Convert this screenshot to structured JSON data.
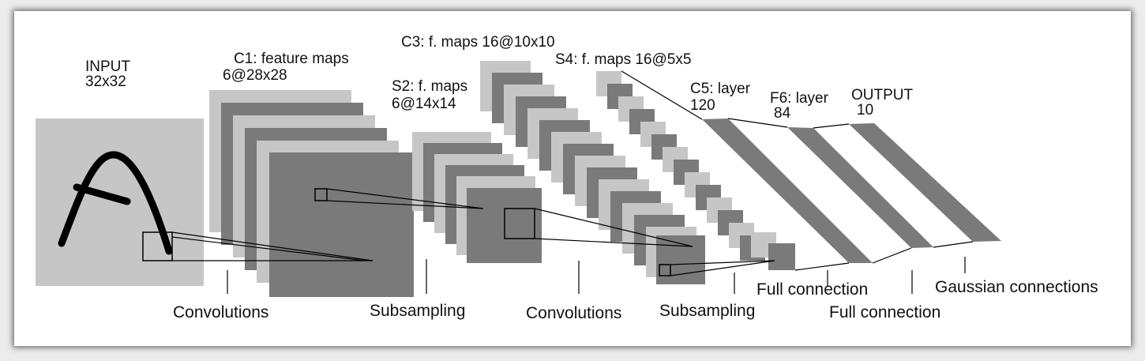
{
  "diagram": {
    "colors": {
      "light": "#c6c6c6",
      "dark": "#7a7a7a",
      "line": "#000000",
      "background": "#ffffff"
    },
    "layers": {
      "input": {
        "name": "INPUT",
        "size": "32x32"
      },
      "c1": {
        "name": "C1: feature maps",
        "size": "6@28x28"
      },
      "s2": {
        "name": "S2: f. maps",
        "size": "6@14x14"
      },
      "c3": {
        "label": "C3: f. maps 16@10x10"
      },
      "s4": {
        "label": "S4: f. maps 16@5x5"
      },
      "c5": {
        "name": "C5: layer",
        "size": "120"
      },
      "f6": {
        "name": "F6: layer",
        "size": "84"
      },
      "output": {
        "name": "OUTPUT",
        "size": "10"
      }
    },
    "operations": {
      "op1": "Convolutions",
      "op2": "Subsampling",
      "op3": "Convolutions",
      "op4": "Subsampling",
      "op5": "Full connection",
      "op6": "Full connection",
      "op7": "Gaussian connections"
    }
  }
}
